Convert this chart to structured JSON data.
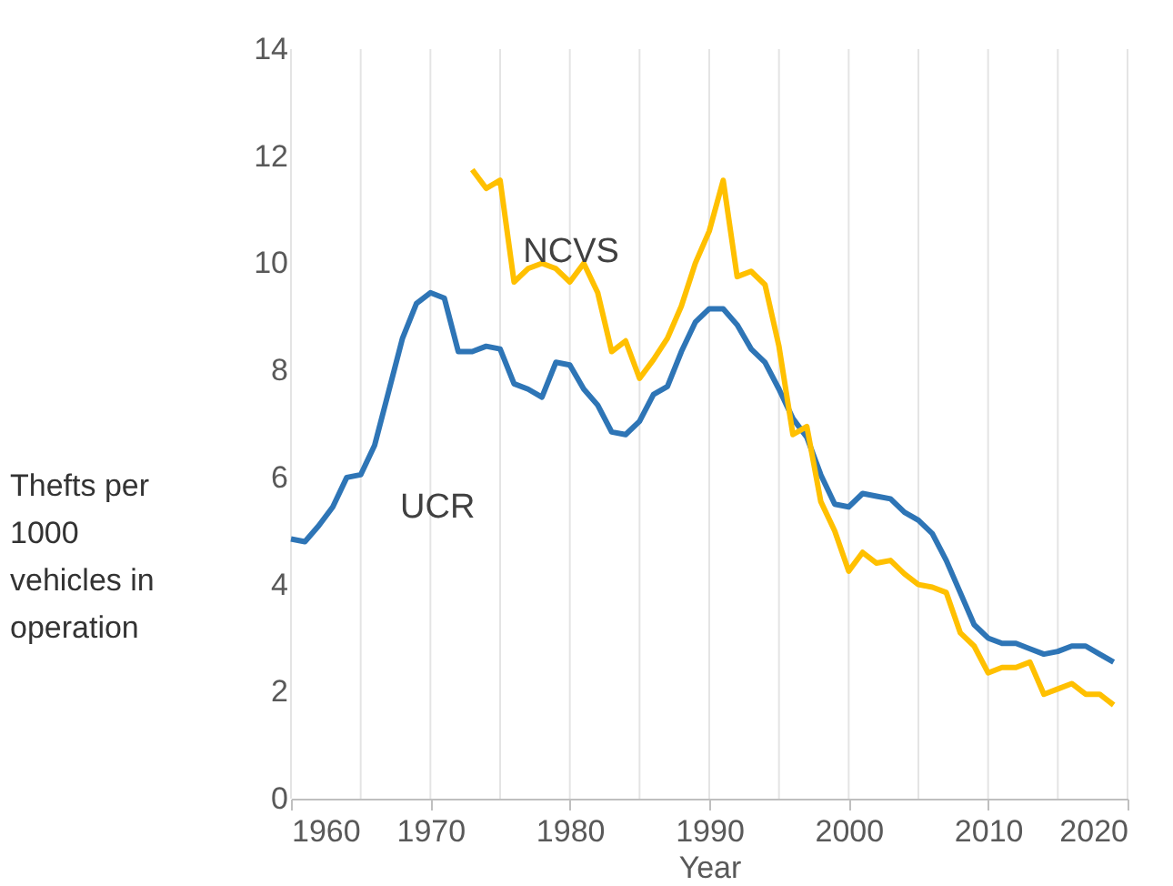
{
  "chart_data": {
    "type": "line",
    "xlabel": "Year",
    "ylabel": "Thefts per 1000 vehicles in operation",
    "xlim": [
      1960,
      2020
    ],
    "xticks": [
      1960,
      {
        "value": 1965,
        "label": null
      },
      1970,
      {
        "value": 1975,
        "label": null
      },
      1980,
      {
        "value": 1985,
        "label": null
      },
      1990,
      {
        "value": 1995,
        "label": null
      },
      2000,
      {
        "value": 2005,
        "label": null
      },
      2010,
      {
        "value": 2015,
        "label": null
      },
      2020
    ],
    "ylim": [
      0,
      14
    ],
    "yticks": [
      0,
      2,
      4,
      6,
      8,
      10,
      12,
      14
    ],
    "grid": "x",
    "legend": false,
    "marker": "none",
    "line_style": "solid",
    "series": [
      {
        "name": "UCR",
        "color": "#2e75b6",
        "x": [
          1960,
          1961,
          1962,
          1963,
          1964,
          1965,
          1966,
          1967,
          1968,
          1969,
          1970,
          1971,
          1972,
          1973,
          1974,
          1975,
          1976,
          1977,
          1978,
          1979,
          1980,
          1981,
          1982,
          1983,
          1984,
          1985,
          1986,
          1987,
          1988,
          1989,
          1990,
          1991,
          1992,
          1993,
          1994,
          1995,
          1996,
          1997,
          1998,
          1999,
          2000,
          2001,
          2002,
          2003,
          2004,
          2005,
          2006,
          2007,
          2008,
          2009,
          2010,
          2011,
          2012,
          2013,
          2014,
          2015,
          2016,
          2017,
          2018,
          2019
        ],
        "values": [
          4.85,
          4.8,
          5.1,
          5.45,
          6.0,
          6.05,
          6.6,
          7.6,
          8.6,
          9.25,
          9.45,
          9.35,
          8.35,
          8.35,
          8.45,
          8.4,
          7.75,
          7.65,
          7.5,
          8.15,
          8.1,
          7.65,
          7.35,
          6.85,
          6.8,
          7.05,
          7.55,
          7.7,
          8.35,
          8.9,
          9.15,
          9.15,
          8.85,
          8.4,
          8.15,
          7.65,
          7.1,
          6.75,
          6.05,
          5.5,
          5.45,
          5.7,
          5.65,
          5.6,
          5.35,
          5.2,
          4.95,
          4.45,
          3.85,
          3.25,
          3.0,
          2.9,
          2.9,
          2.8,
          2.7,
          2.75,
          2.85,
          2.85,
          2.7,
          2.55
        ]
      },
      {
        "name": "NCVS",
        "color": "#ffc000",
        "x": [
          1973,
          1974,
          1975,
          1976,
          1977,
          1978,
          1979,
          1980,
          1981,
          1982,
          1983,
          1984,
          1985,
          1986,
          1987,
          1988,
          1989,
          1990,
          1991,
          1992,
          1993,
          1994,
          1995,
          1996,
          1997,
          1998,
          1999,
          2000,
          2001,
          2002,
          2003,
          2004,
          2005,
          2006,
          2007,
          2008,
          2009,
          2010,
          2011,
          2012,
          2013,
          2014,
          2015,
          2016,
          2017,
          2018,
          2019
        ],
        "values": [
          11.75,
          11.4,
          11.55,
          9.65,
          9.9,
          10.0,
          9.9,
          9.65,
          10.0,
          9.45,
          8.35,
          8.55,
          7.85,
          8.2,
          8.6,
          9.2,
          10.0,
          10.6,
          11.55,
          9.75,
          9.85,
          9.6,
          8.45,
          6.8,
          6.95,
          5.55,
          5.0,
          4.25,
          4.6,
          4.4,
          4.45,
          4.2,
          4.0,
          3.95,
          3.85,
          3.1,
          2.85,
          2.35,
          2.45,
          2.45,
          2.55,
          1.95,
          2.05,
          2.15,
          1.95,
          1.95,
          1.75
        ]
      }
    ]
  }
}
